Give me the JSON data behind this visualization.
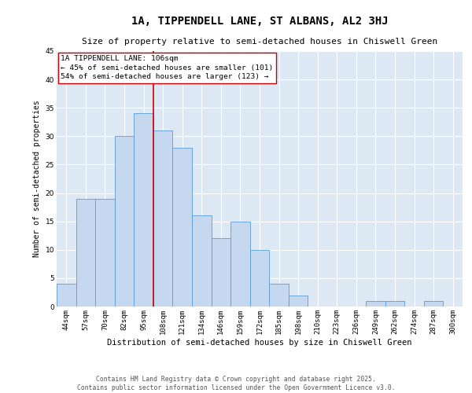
{
  "title": "1A, TIPPENDELL LANE, ST ALBANS, AL2 3HJ",
  "subtitle": "Size of property relative to semi-detached houses in Chiswell Green",
  "xlabel": "Distribution of semi-detached houses by size in Chiswell Green",
  "ylabel": "Number of semi-detached properties",
  "categories": [
    "44sqm",
    "57sqm",
    "70sqm",
    "82sqm",
    "95sqm",
    "108sqm",
    "121sqm",
    "134sqm",
    "146sqm",
    "159sqm",
    "172sqm",
    "185sqm",
    "198sqm",
    "210sqm",
    "223sqm",
    "236sqm",
    "249sqm",
    "262sqm",
    "274sqm",
    "287sqm",
    "300sqm"
  ],
  "values": [
    4,
    19,
    19,
    30,
    34,
    31,
    28,
    16,
    12,
    15,
    10,
    4,
    2,
    0,
    0,
    0,
    1,
    1,
    0,
    1,
    0
  ],
  "bar_color": "#c5d8f0",
  "bar_edge_color": "#5b9bd5",
  "vline_index": 5,
  "vline_color": "#cc0000",
  "annotation_text": "1A TIPPENDELL LANE: 106sqm\n← 45% of semi-detached houses are smaller (101)\n54% of semi-detached houses are larger (123) →",
  "annotation_box_color": "#ffffff",
  "annotation_box_edge": "#cc0000",
  "ylim": [
    0,
    45
  ],
  "yticks": [
    0,
    5,
    10,
    15,
    20,
    25,
    30,
    35,
    40,
    45
  ],
  "background_color": "#dde8f5",
  "grid_color": "#ffffff",
  "fig_background": "#ffffff",
  "footer_line1": "Contains HM Land Registry data © Crown copyright and database right 2025.",
  "footer_line2": "Contains public sector information licensed under the Open Government Licence v3.0.",
  "title_fontsize": 10,
  "subtitle_fontsize": 8,
  "xlabel_fontsize": 7.5,
  "ylabel_fontsize": 7,
  "tick_fontsize": 6.5,
  "annotation_fontsize": 6.8,
  "footer_fontsize": 5.8
}
